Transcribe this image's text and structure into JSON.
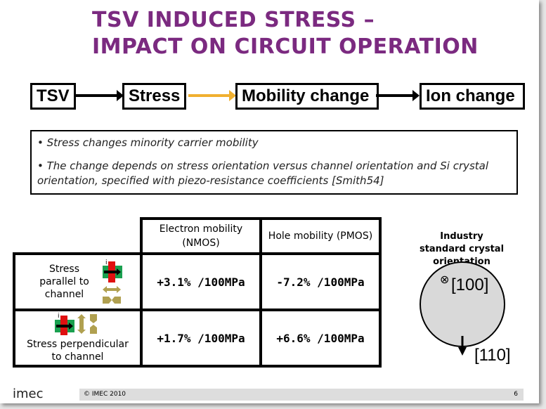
{
  "title": {
    "line1": "TSV INDUCED STRESS –",
    "line2": "IMPACT ON CIRCUIT OPERATION"
  },
  "flow": [
    "TSV",
    "Stress",
    "Mobility change",
    "Ion change"
  ],
  "bullets": [
    "• Stress changes minority carrier mobility",
    "• The change depends on stress orientation versus channel orientation and Si crystal orientation, specified with piezo-resistance coefficients [Smith54]"
  ],
  "table": {
    "headers": [
      "Electron mobility (NMOS)",
      "Hole mobility (PMOS)"
    ],
    "rows": [
      {
        "label": "Stress parallel to channel",
        "nmos": "+3.1% /100MPa",
        "pmos": "-7.2% /100MPa"
      },
      {
        "label": "Stress perpendicular to channel",
        "nmos": "+1.7% /100MPa",
        "pmos": "+6.6% /100MPa"
      }
    ],
    "current_label": "i"
  },
  "crystal": {
    "title": "Industry standard crystal orientation",
    "dir1": "[100]",
    "dir2": "[110]"
  },
  "footer": {
    "logo": "imec",
    "copyright": "© IMEC 2010",
    "page": "6"
  },
  "colors": {
    "title": "#7b2a80",
    "arrow_yellow": "#f0b030"
  }
}
